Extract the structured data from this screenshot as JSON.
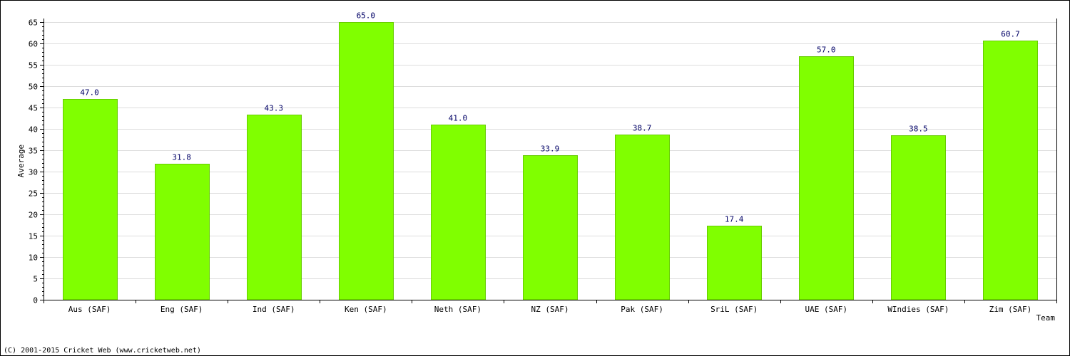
{
  "chart_data": {
    "type": "bar",
    "categories": [
      "Aus (SAF)",
      "Eng (SAF)",
      "Ind (SAF)",
      "Ken (SAF)",
      "Neth (SAF)",
      "NZ (SAF)",
      "Pak (SAF)",
      "SriL (SAF)",
      "UAE (SAF)",
      "WIndies (SAF)",
      "Zim (SAF)"
    ],
    "values": [
      47.0,
      31.8,
      43.3,
      65.0,
      41.0,
      33.9,
      38.7,
      17.4,
      57.0,
      38.5,
      60.7
    ],
    "value_labels": [
      "47.0",
      "31.8",
      "43.3",
      "65.0",
      "41.0",
      "33.9",
      "38.7",
      "17.4",
      "57.0",
      "38.5",
      "60.7"
    ],
    "xlabel": "Team",
    "ylabel": "Average",
    "ylim": [
      0,
      65
    ],
    "yticks": [
      0,
      5,
      10,
      15,
      20,
      25,
      30,
      35,
      40,
      45,
      50,
      55,
      60,
      65
    ],
    "grid": true,
    "bar_color": "#80ff00",
    "bar_border_color": "#66cc00",
    "value_label_color": "#000066",
    "grid_color": "#dddddd"
  },
  "footer": {
    "copyright": "(C) 2001-2015 Cricket Web (www.cricketweb.net)"
  }
}
